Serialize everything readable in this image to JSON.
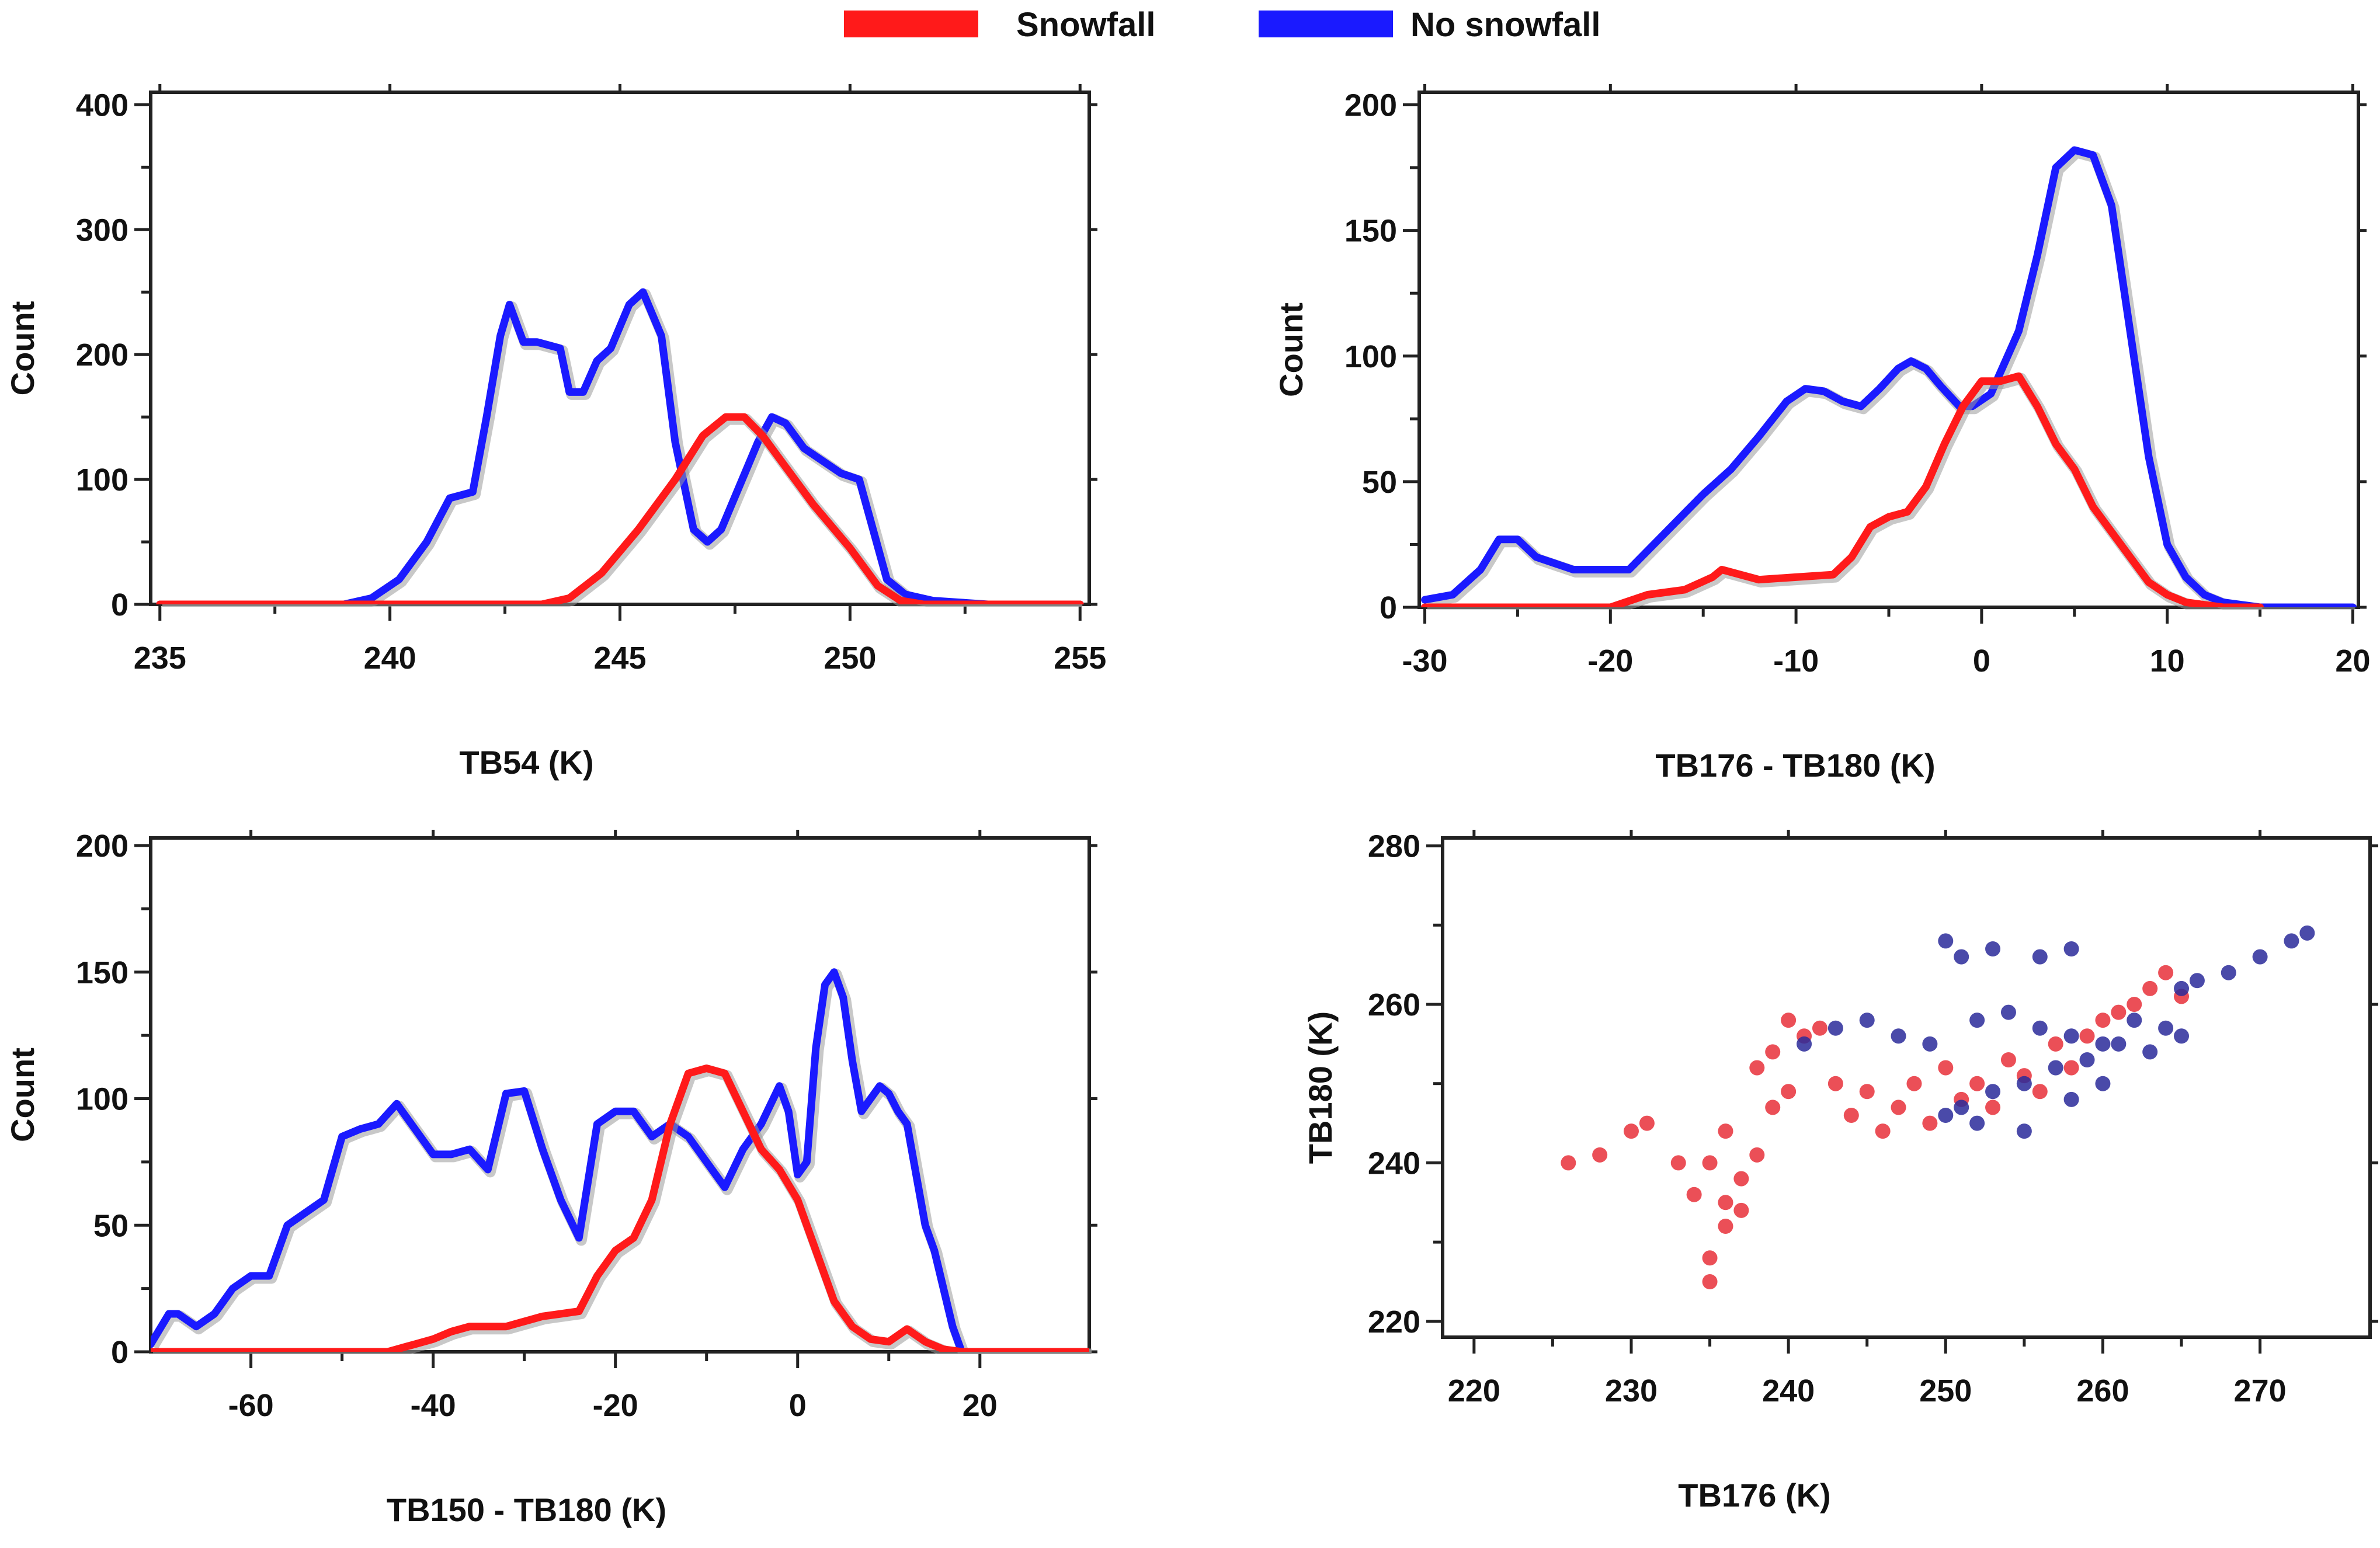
{
  "legend": {
    "entries": [
      {
        "label": "Snowfall",
        "color": "#ff1a1a"
      },
      {
        "label": "No snowfall",
        "color": "#1a1aff"
      }
    ]
  },
  "colors": {
    "snowfall": "#ff1a1a",
    "no_snowfall": "#1a1aff",
    "scatter_snow": "#e8303a",
    "scatter_nosnow": "#2a2a9a"
  },
  "chart_data": [
    {
      "type": "line",
      "xlabel": "TB54 (K)",
      "ylabel": "Count",
      "xlim": [
        234.8,
        255.2
      ],
      "ylim": [
        0,
        410
      ],
      "xticks": [
        "235",
        "240",
        "245",
        "250",
        "255"
      ],
      "yticks": [
        "0",
        "100",
        "200",
        "300",
        "400"
      ],
      "series": [
        {
          "name": "No snowfall",
          "x": [
            235,
            239,
            239.6,
            240.2,
            240.8,
            241.3,
            241.8,
            242.1,
            242.4,
            242.6,
            242.9,
            243.2,
            243.7,
            243.9,
            244.2,
            244.5,
            244.8,
            245.2,
            245.5,
            245.9,
            246.2,
            246.6,
            246.9,
            247.2,
            247.6,
            248.0,
            248.3,
            248.6,
            249.0,
            249.4,
            249.8,
            250.2,
            250.5,
            250.8,
            251.2,
            251.8,
            253,
            255
          ],
          "values": [
            0,
            0,
            5,
            20,
            50,
            85,
            90,
            150,
            215,
            240,
            210,
            210,
            205,
            170,
            170,
            195,
            205,
            240,
            250,
            215,
            130,
            60,
            50,
            60,
            95,
            130,
            150,
            145,
            125,
            115,
            105,
            100,
            60,
            20,
            8,
            3,
            0,
            0
          ]
        },
        {
          "name": "Snowfall",
          "x": [
            235,
            239.8,
            243.3,
            243.9,
            244.6,
            245.4,
            246.2,
            246.8,
            247.3,
            247.7,
            248.1,
            248.6,
            249.2,
            250.0,
            250.6,
            251.1,
            251.6,
            255
          ],
          "values": [
            0,
            0,
            0,
            5,
            25,
            60,
            100,
            135,
            150,
            150,
            135,
            110,
            80,
            45,
            15,
            3,
            0,
            0
          ]
        }
      ]
    },
    {
      "type": "line",
      "xlabel": "TB176 - TB180 (K)",
      "ylabel": "Count",
      "xlim": [
        -30.3,
        20.3
      ],
      "ylim": [
        0,
        205
      ],
      "xticks": [
        "-30",
        "-20",
        "-10",
        "0",
        "10",
        "20"
      ],
      "yticks": [
        "0",
        "50",
        "100",
        "150",
        "200"
      ],
      "series": [
        {
          "name": "No snowfall",
          "x": [
            -30,
            -28.5,
            -27,
            -26,
            -25,
            -24,
            -22,
            -20,
            -19,
            -17,
            -15,
            -13.5,
            -12,
            -10.5,
            -9.5,
            -8.5,
            -7.5,
            -6.5,
            -5.5,
            -4.5,
            -3.8,
            -3,
            -2.2,
            -1.2,
            -0.5,
            0.5,
            2,
            3,
            4,
            5,
            6,
            7,
            8,
            9,
            10,
            11,
            12,
            13,
            15,
            20
          ],
          "values": [
            3,
            5,
            15,
            27,
            27,
            20,
            15,
            15,
            15,
            30,
            45,
            55,
            68,
            82,
            87,
            86,
            82,
            80,
            87,
            95,
            98,
            95,
            88,
            80,
            80,
            85,
            110,
            140,
            175,
            182,
            180,
            160,
            110,
            60,
            25,
            12,
            5,
            2,
            0,
            0
          ]
        },
        {
          "name": "Snowfall",
          "x": [
            -30,
            -23,
            -20,
            -18,
            -16,
            -14.5,
            -14,
            -12,
            -10,
            -8,
            -7,
            -6,
            -5,
            -4,
            -3,
            -2,
            -1,
            0,
            1,
            2,
            3,
            4,
            5,
            6,
            7,
            8,
            9,
            10,
            11,
            13,
            15
          ],
          "values": [
            0,
            0,
            0,
            5,
            7,
            12,
            15,
            11,
            12,
            13,
            20,
            32,
            36,
            38,
            48,
            65,
            80,
            90,
            90,
            92,
            80,
            65,
            55,
            40,
            30,
            20,
            10,
            5,
            2,
            0,
            0
          ]
        }
      ]
    },
    {
      "type": "line",
      "xlabel": "TB150 - TB180 (K)",
      "ylabel": "Count",
      "xlim": [
        -71,
        32
      ],
      "ylim": [
        0,
        203
      ],
      "xticks": [
        "-60",
        "-40",
        "-20",
        "0",
        "20"
      ],
      "yticks": [
        "0",
        "50",
        "100",
        "150",
        "200"
      ],
      "series": [
        {
          "name": "No snowfall",
          "x": [
            -71,
            -69,
            -68,
            -66,
            -64,
            -62,
            -60,
            -58,
            -56,
            -54,
            -52,
            -50,
            -48,
            -46,
            -44,
            -42,
            -40,
            -38,
            -36,
            -34,
            -32,
            -30,
            -28,
            -26,
            -24,
            -22,
            -20,
            -18,
            -16,
            -14,
            -12,
            -10,
            -8,
            -6,
            -4,
            -2,
            -1,
            0,
            1,
            2,
            3,
            4,
            5,
            6,
            7,
            8,
            9,
            10,
            11,
            12,
            13,
            14,
            15,
            16,
            17,
            18,
            20,
            32
          ],
          "values": [
            3,
            15,
            15,
            10,
            15,
            25,
            30,
            30,
            50,
            55,
            60,
            85,
            88,
            90,
            98,
            88,
            78,
            78,
            80,
            72,
            102,
            103,
            80,
            60,
            45,
            90,
            95,
            95,
            85,
            90,
            85,
            75,
            65,
            80,
            90,
            105,
            95,
            70,
            75,
            120,
            145,
            150,
            140,
            115,
            95,
            100,
            105,
            102,
            95,
            90,
            70,
            50,
            40,
            25,
            10,
            0,
            0,
            0
          ]
        },
        {
          "name": "Snowfall",
          "x": [
            -71,
            -45,
            -44,
            -43,
            -42,
            -40,
            -38,
            -36,
            -34,
            -32,
            -30,
            -28,
            -26,
            -24,
            -22,
            -20,
            -18,
            -16,
            -14,
            -12,
            -10,
            -8,
            -6,
            -4,
            -2,
            0,
            2,
            4,
            6,
            8,
            10,
            12,
            14,
            16,
            18,
            32
          ],
          "values": [
            0,
            0,
            1,
            2,
            3,
            5,
            8,
            10,
            10,
            10,
            12,
            14,
            15,
            16,
            30,
            40,
            45,
            60,
            90,
            110,
            112,
            110,
            95,
            80,
            72,
            60,
            40,
            20,
            10,
            5,
            4,
            9,
            4,
            1,
            0,
            0
          ]
        }
      ]
    },
    {
      "type": "scatter",
      "xlabel": "TB176 (K)",
      "ylabel": "TB180 (K)",
      "xlim": [
        218,
        277
      ],
      "ylim": [
        218,
        281
      ],
      "xticks": [
        "220",
        "230",
        "240",
        "250",
        "260",
        "270"
      ],
      "yticks": [
        "220",
        "240",
        "260",
        "280"
      ],
      "series": [
        {
          "name": "Snowfall",
          "points": [
            [
              226,
              240
            ],
            [
              228,
              241
            ],
            [
              230,
              244
            ],
            [
              231,
              245
            ],
            [
              233,
              240
            ],
            [
              235,
              225
            ],
            [
              235,
              228
            ],
            [
              236,
              232
            ],
            [
              234,
              236
            ],
            [
              236,
              235
            ],
            [
              237,
              234
            ],
            [
              235,
              240
            ],
            [
              237,
              238
            ],
            [
              238,
              241
            ],
            [
              236,
              244
            ],
            [
              239,
              247
            ],
            [
              240,
              249
            ],
            [
              238,
              252
            ],
            [
              239,
              254
            ],
            [
              241,
              256
            ],
            [
              240,
              258
            ],
            [
              242,
              257
            ],
            [
              243,
              250
            ],
            [
              244,
              246
            ],
            [
              245,
              249
            ],
            [
              246,
              244
            ],
            [
              247,
              247
            ],
            [
              248,
              250
            ],
            [
              249,
              245
            ],
            [
              250,
              252
            ],
            [
              251,
              248
            ],
            [
              252,
              250
            ],
            [
              253,
              247
            ],
            [
              254,
              253
            ],
            [
              255,
              251
            ],
            [
              256,
              249
            ],
            [
              257,
              255
            ],
            [
              258,
              252
            ],
            [
              259,
              256
            ],
            [
              260,
              258
            ],
            [
              261,
              259
            ],
            [
              262,
              260
            ],
            [
              263,
              262
            ],
            [
              264,
              264
            ],
            [
              265,
              261
            ]
          ]
        },
        {
          "name": "No snowfall",
          "points": [
            [
              241,
              255
            ],
            [
              243,
              257
            ],
            [
              245,
              258
            ],
            [
              247,
              256
            ],
            [
              249,
              255
            ],
            [
              250,
              268
            ],
            [
              251,
              266
            ],
            [
              253,
              267
            ],
            [
              256,
              266
            ],
            [
              258,
              267
            ],
            [
              252,
              258
            ],
            [
              254,
              259
            ],
            [
              256,
              257
            ],
            [
              258,
              256
            ],
            [
              260,
              255
            ],
            [
              262,
              258
            ],
            [
              264,
              257
            ],
            [
              265,
              262
            ],
            [
              266,
              263
            ],
            [
              268,
              264
            ],
            [
              270,
              266
            ],
            [
              272,
              268
            ],
            [
              273,
              269
            ],
            [
              250,
              246
            ],
            [
              251,
              247
            ],
            [
              253,
              249
            ],
            [
              255,
              250
            ],
            [
              257,
              252
            ],
            [
              259,
              253
            ],
            [
              261,
              255
            ],
            [
              263,
              254
            ],
            [
              265,
              256
            ],
            [
              252,
              245
            ],
            [
              255,
              244
            ],
            [
              258,
              248
            ],
            [
              260,
              250
            ]
          ]
        }
      ]
    }
  ]
}
